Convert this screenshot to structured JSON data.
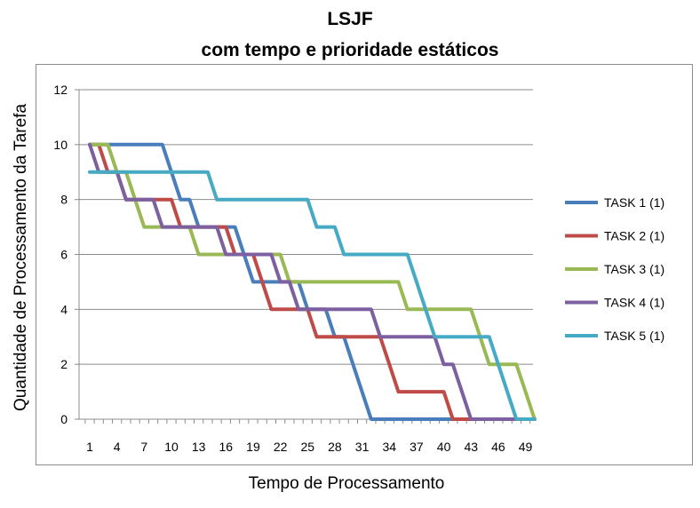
{
  "chart_data": {
    "type": "line",
    "title": "LSJF",
    "subtitle": "com tempo e prioridade estáticos",
    "xlabel": "Tempo de Processamento",
    "ylabel": "Quantidade de Processamento da Tarefa",
    "xlim": [
      1,
      50
    ],
    "ylim": [
      0,
      12
    ],
    "x_tick_labels": [
      "1",
      "4",
      "7",
      "10",
      "13",
      "16",
      "19",
      "22",
      "25",
      "28",
      "31",
      "34",
      "37",
      "40",
      "43",
      "46",
      "49"
    ],
    "y_tick_labels": [
      "0",
      "2",
      "4",
      "6",
      "8",
      "10",
      "12"
    ],
    "grid": true,
    "legend_position": "right",
    "series": [
      {
        "name": "TASK 1 (1)",
        "color": "#4a7ebb",
        "x": [
          1,
          9,
          10,
          11,
          12,
          13,
          14,
          15,
          16,
          17,
          18,
          19,
          20,
          21,
          22,
          23,
          24,
          25,
          26,
          27,
          28,
          29,
          30,
          31,
          32,
          50
        ],
        "y": [
          10,
          10,
          9,
          8,
          8,
          7,
          7,
          7,
          7,
          7,
          6,
          5,
          5,
          5,
          5,
          5,
          5,
          4,
          4,
          4,
          3,
          3,
          2,
          1,
          0,
          0
        ]
      },
      {
        "name": "TASK 2 (1)",
        "color": "#be4b48",
        "x": [
          1,
          2,
          3,
          4,
          5,
          6,
          7,
          8,
          9,
          10,
          11,
          12,
          13,
          14,
          15,
          16,
          17,
          18,
          19,
          20,
          21,
          22,
          23,
          24,
          25,
          26,
          27,
          28,
          29,
          30,
          31,
          32,
          33,
          34,
          35,
          36,
          37,
          38,
          39,
          40,
          41,
          42,
          50
        ],
        "y": [
          10,
          10,
          9,
          9,
          8,
          8,
          8,
          8,
          8,
          8,
          7,
          7,
          7,
          7,
          7,
          7,
          6,
          6,
          6,
          5,
          4,
          4,
          4,
          4,
          4,
          3,
          3,
          3,
          3,
          3,
          3,
          3,
          3,
          2,
          1,
          1,
          1,
          1,
          1,
          1,
          0,
          0,
          0
        ]
      },
      {
        "name": "TASK 3 (1)",
        "color": "#98b954",
        "x": [
          1,
          3,
          4,
          5,
          6,
          7,
          8,
          9,
          10,
          11,
          12,
          13,
          14,
          15,
          16,
          17,
          18,
          19,
          20,
          21,
          22,
          23,
          24,
          25,
          26,
          27,
          28,
          29,
          30,
          31,
          32,
          33,
          34,
          35,
          36,
          37,
          38,
          39,
          40,
          41,
          42,
          43,
          44,
          45,
          46,
          47,
          48,
          49,
          50
        ],
        "y": [
          10,
          10,
          9,
          9,
          8,
          7,
          7,
          7,
          7,
          7,
          7,
          6,
          6,
          6,
          6,
          6,
          6,
          6,
          6,
          6,
          6,
          5,
          5,
          5,
          5,
          5,
          5,
          5,
          5,
          5,
          5,
          5,
          5,
          5,
          4,
          4,
          4,
          4,
          4,
          4,
          4,
          4,
          3,
          2,
          2,
          2,
          2,
          1,
          0
        ]
      },
      {
        "name": "TASK 4 (1)",
        "color": "#7d60a0",
        "x": [
          1,
          2,
          3,
          4,
          5,
          6,
          7,
          8,
          9,
          10,
          11,
          12,
          13,
          14,
          15,
          16,
          17,
          18,
          19,
          20,
          21,
          22,
          23,
          24,
          25,
          26,
          27,
          28,
          29,
          30,
          31,
          32,
          33,
          34,
          35,
          36,
          37,
          38,
          39,
          40,
          41,
          42,
          43,
          44,
          50
        ],
        "y": [
          10,
          9,
          9,
          9,
          8,
          8,
          8,
          8,
          7,
          7,
          7,
          7,
          7,
          7,
          7,
          6,
          6,
          6,
          6,
          6,
          6,
          5,
          5,
          4,
          4,
          4,
          4,
          4,
          4,
          4,
          4,
          4,
          3,
          3,
          3,
          3,
          3,
          3,
          3,
          2,
          2,
          1,
          0,
          0,
          0
        ]
      },
      {
        "name": "TASK 5 (1)",
        "color": "#46aac5",
        "x": [
          1,
          14,
          15,
          16,
          17,
          18,
          19,
          20,
          21,
          22,
          23,
          24,
          25,
          26,
          27,
          28,
          29,
          30,
          31,
          32,
          33,
          34,
          35,
          36,
          37,
          38,
          39,
          40,
          41,
          42,
          43,
          44,
          45,
          46,
          47,
          48,
          50
        ],
        "y": [
          9,
          9,
          8,
          8,
          8,
          8,
          8,
          8,
          8,
          8,
          8,
          8,
          8,
          7,
          7,
          7,
          6,
          6,
          6,
          6,
          6,
          6,
          6,
          6,
          5,
          4,
          3,
          3,
          3,
          3,
          3,
          3,
          3,
          2,
          1,
          0,
          0
        ]
      }
    ]
  }
}
